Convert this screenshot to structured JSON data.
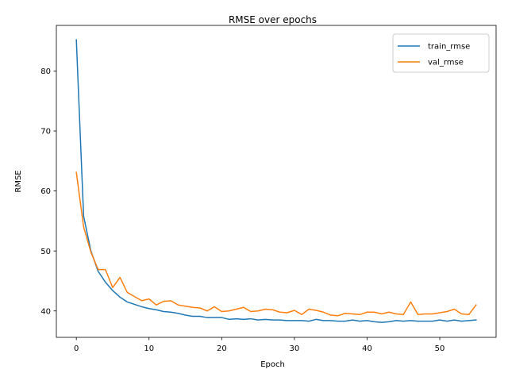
{
  "chart_data": {
    "type": "line",
    "title": "RMSE over epochs",
    "xlabel": "Epoch",
    "ylabel": "RMSE",
    "xlim": [
      -2.75,
      57.75
    ],
    "ylim": [
      35.6,
      87.6
    ],
    "xticks": [
      0,
      10,
      20,
      30,
      40,
      50
    ],
    "yticks": [
      40,
      50,
      60,
      70,
      80
    ],
    "grid": false,
    "legend_position": "top-right",
    "series": [
      {
        "name": "train_rmse",
        "color": "#1f77b4",
        "x": [
          0,
          1,
          2,
          3,
          4,
          5,
          6,
          7,
          8,
          9,
          10,
          11,
          12,
          13,
          14,
          15,
          16,
          17,
          18,
          19,
          20,
          21,
          22,
          23,
          24,
          25,
          26,
          27,
          28,
          29,
          30,
          31,
          32,
          33,
          34,
          35,
          36,
          37,
          38,
          39,
          40,
          41,
          42,
          43,
          44,
          45,
          46,
          47,
          48,
          49,
          50,
          51,
          52,
          53,
          54,
          55
        ],
        "values": [
          85.2,
          55.8,
          50.0,
          46.6,
          44.8,
          43.4,
          42.3,
          41.5,
          41.1,
          40.7,
          40.4,
          40.2,
          39.9,
          39.8,
          39.6,
          39.3,
          39.1,
          39.1,
          38.9,
          38.9,
          38.9,
          38.6,
          38.7,
          38.6,
          38.7,
          38.5,
          38.6,
          38.5,
          38.5,
          38.4,
          38.4,
          38.4,
          38.3,
          38.6,
          38.4,
          38.4,
          38.3,
          38.3,
          38.5,
          38.3,
          38.4,
          38.2,
          38.1,
          38.2,
          38.4,
          38.3,
          38.4,
          38.3,
          38.3,
          38.3,
          38.5,
          38.3,
          38.5,
          38.3,
          38.4,
          38.5
        ]
      },
      {
        "name": "val_rmse",
        "color": "#ff7f0e",
        "x": [
          0,
          1,
          2,
          3,
          4,
          5,
          6,
          7,
          8,
          9,
          10,
          11,
          12,
          13,
          14,
          15,
          16,
          17,
          18,
          19,
          20,
          21,
          22,
          23,
          24,
          25,
          26,
          27,
          28,
          29,
          30,
          31,
          32,
          33,
          34,
          35,
          36,
          37,
          38,
          39,
          40,
          41,
          42,
          43,
          44,
          45,
          46,
          47,
          48,
          49,
          50,
          51,
          52,
          53,
          54,
          55
        ],
        "values": [
          63.1,
          54.0,
          49.8,
          46.9,
          46.9,
          43.9,
          45.6,
          43.1,
          42.4,
          41.7,
          42.0,
          41.0,
          41.6,
          41.7,
          41.0,
          40.8,
          40.6,
          40.5,
          40.0,
          40.7,
          39.9,
          40.0,
          40.3,
          40.6,
          39.9,
          40.0,
          40.3,
          40.2,
          39.8,
          39.7,
          40.1,
          39.4,
          40.3,
          40.1,
          39.8,
          39.3,
          39.2,
          39.6,
          39.5,
          39.4,
          39.8,
          39.8,
          39.5,
          39.8,
          39.5,
          39.4,
          41.5,
          39.4,
          39.5,
          39.5,
          39.7,
          39.9,
          40.3,
          39.5,
          39.4,
          41.0
        ]
      }
    ]
  }
}
